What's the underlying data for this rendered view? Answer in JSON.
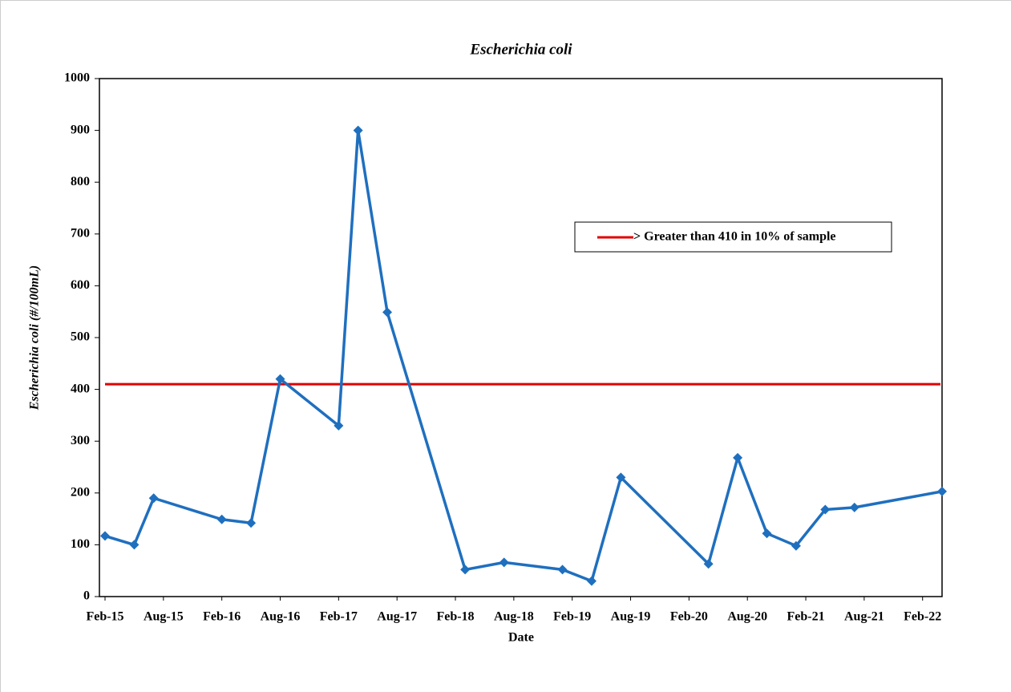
{
  "chart_data": {
    "type": "line",
    "title": "Escherichia coli",
    "xlabel": "Date",
    "ylabel": "Escherichia coli (#/100mL)",
    "x": [
      "2015-02",
      "2015-05",
      "2015-07",
      "2016-02",
      "2016-05",
      "2016-08",
      "2017-02",
      "2017-04",
      "2017-07",
      "2018-03",
      "2018-07",
      "2019-01",
      "2019-04",
      "2019-07",
      "2020-04",
      "2020-07",
      "2020-10",
      "2021-01",
      "2021-04",
      "2021-07",
      "2022-04"
    ],
    "series": [
      {
        "color": "#1f6fbf",
        "values": [
          117,
          100,
          190,
          149,
          142,
          420,
          330,
          900,
          549,
          52,
          66,
          52,
          30,
          230,
          63,
          268,
          122,
          98,
          168,
          172,
          203
        ]
      }
    ],
    "threshold": {
      "name": "> Greater than 410 in 10% of sample",
      "value": 410,
      "color": "#e00000"
    },
    "xlim": [
      "2015-02",
      "2022-04"
    ],
    "xticks": [
      {
        "value": "2015-02",
        "label": "Feb-15"
      },
      {
        "value": "2015-08",
        "label": "Aug-15"
      },
      {
        "value": "2016-02",
        "label": "Feb-16"
      },
      {
        "value": "2016-08",
        "label": "Aug-16"
      },
      {
        "value": "2017-02",
        "label": "Feb-17"
      },
      {
        "value": "2017-08",
        "label": "Aug-17"
      },
      {
        "value": "2018-02",
        "label": "Feb-18"
      },
      {
        "value": "2018-08",
        "label": "Aug-18"
      },
      {
        "value": "2019-02",
        "label": "Feb-19"
      },
      {
        "value": "2019-08",
        "label": "Aug-19"
      },
      {
        "value": "2020-02",
        "label": "Feb-20"
      },
      {
        "value": "2020-08",
        "label": "Aug-20"
      },
      {
        "value": "2021-02",
        "label": "Feb-21"
      },
      {
        "value": "2021-08",
        "label": "Aug-21"
      },
      {
        "value": "2022-02",
        "label": "Feb-22"
      }
    ],
    "ylim": [
      0,
      1000
    ],
    "yticks": [
      0,
      100,
      200,
      300,
      400,
      500,
      600,
      700,
      800,
      900,
      1000
    ]
  }
}
